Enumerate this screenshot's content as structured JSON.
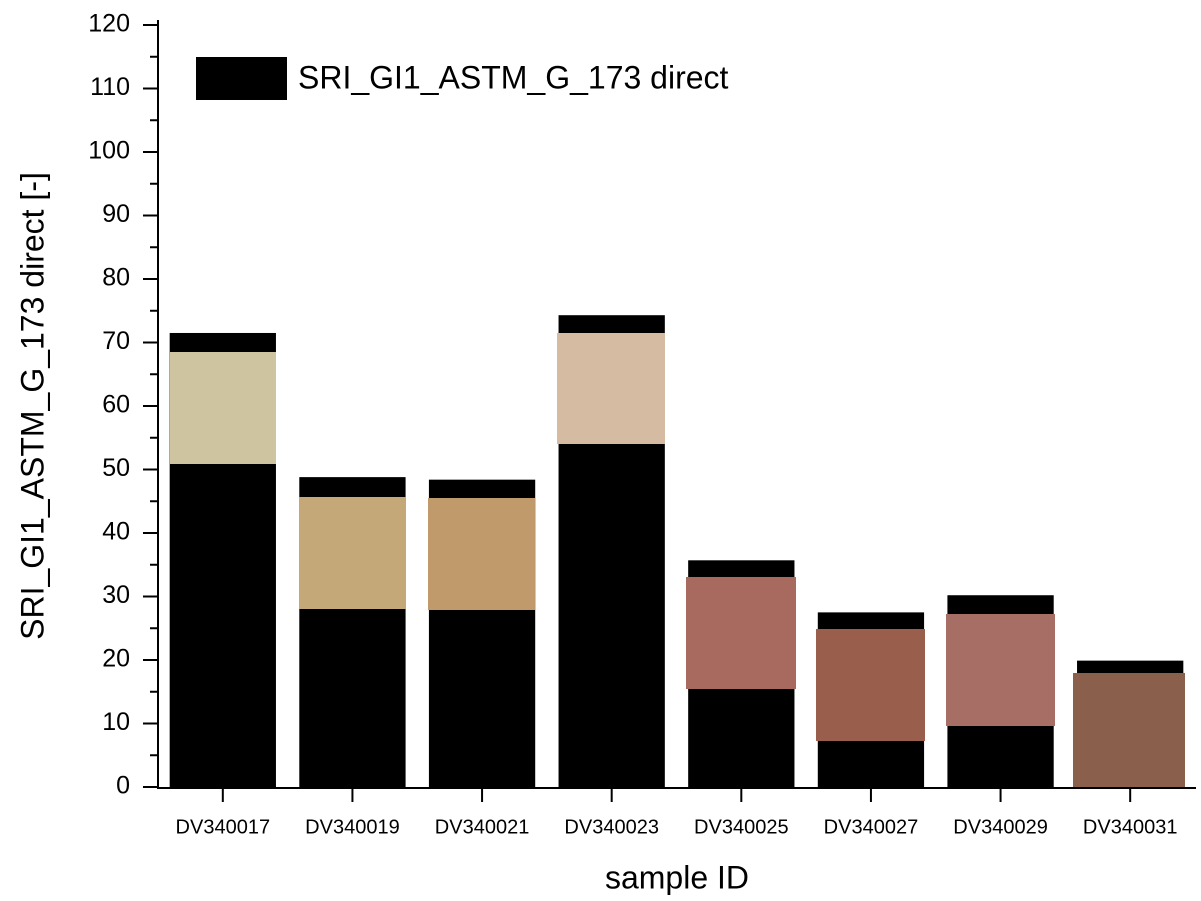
{
  "chart_data": {
    "type": "bar",
    "x_label": "sample ID",
    "y_label": "SRI_GI1_ASTM_G_173 direct [-]",
    "categories": [
      "DV340017",
      "DV340019",
      "DV340021",
      "DV340023",
      "DV340025",
      "DV340027",
      "DV340029",
      "DV340031"
    ],
    "series": [
      {
        "name": "SRI_GI1_ASTM_G_173 direct",
        "color": "#000000",
        "values": [
          71.5,
          48.8,
          48.4,
          74.3,
          35.7,
          27.5,
          30.2,
          19.9
        ]
      }
    ],
    "ylim": [
      0,
      120
    ],
    "yticks": [
      0,
      10,
      20,
      30,
      40,
      50,
      60,
      70,
      80,
      90,
      100,
      110,
      120
    ],
    "grid": false
  }
}
